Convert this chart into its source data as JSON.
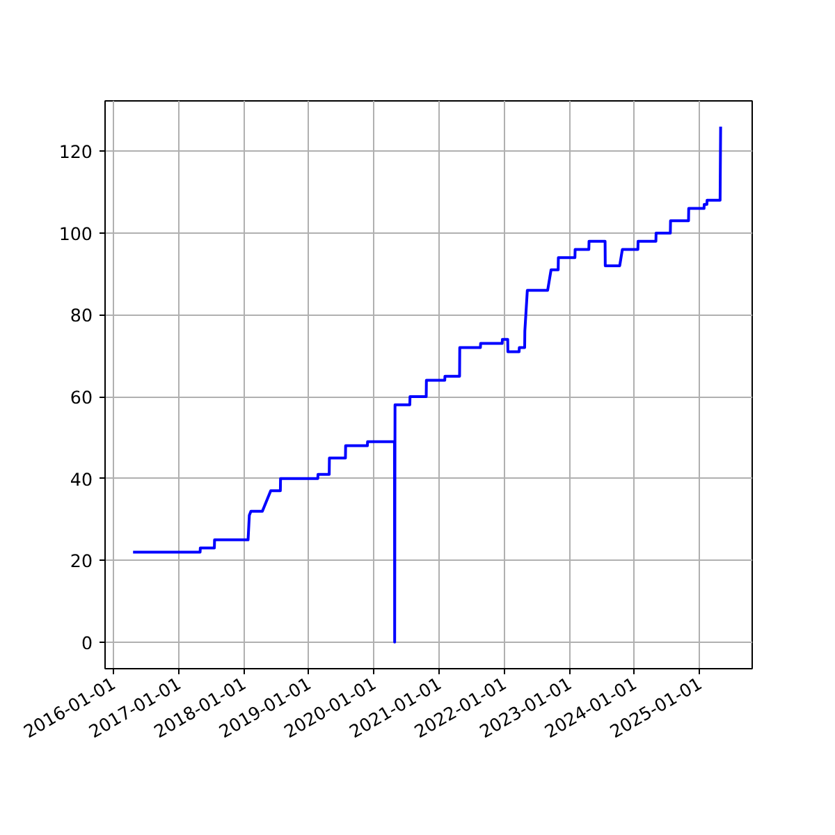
{
  "chart_data": {
    "type": "line",
    "x": [
      "2016-04-20",
      "2017-05-01",
      "2017-05-02",
      "2017-07-20",
      "2017-07-21",
      "2018-01-25",
      "2018-02-01",
      "2018-02-10",
      "2018-04-15",
      "2018-06-01",
      "2018-07-25",
      "2018-07-26",
      "2019-02-20",
      "2019-02-21",
      "2019-04-25",
      "2019-04-26",
      "2019-07-25",
      "2019-07-26",
      "2019-11-25",
      "2019-11-26",
      "2020-04-25",
      "2020-04-26",
      "2020-04-28",
      "2020-07-20",
      "2020-07-21",
      "2020-10-20",
      "2020-10-21",
      "2021-02-01",
      "2021-02-02",
      "2021-04-25",
      "2021-04-26",
      "2021-08-20",
      "2021-08-21",
      "2021-12-20",
      "2021-12-21",
      "2022-01-20",
      "2022-01-21",
      "2022-03-25",
      "2022-03-26",
      "2022-04-25",
      "2022-04-26",
      "2022-05-10",
      "2022-09-01",
      "2022-09-20",
      "2022-10-30",
      "2022-10-31",
      "2023-02-01",
      "2023-02-02",
      "2023-04-20",
      "2023-04-21",
      "2023-07-20",
      "2023-07-21",
      "2023-10-10",
      "2023-10-25",
      "2024-01-20",
      "2024-01-21",
      "2024-04-30",
      "2024-05-01",
      "2024-07-20",
      "2024-07-21",
      "2024-10-30",
      "2024-10-31",
      "2025-01-25",
      "2025-01-26",
      "2025-02-10",
      "2025-02-11",
      "2025-04-25",
      "2025-04-28"
    ],
    "series": [
      {
        "color": "#0000ff",
        "values": [
          22,
          22,
          23,
          23,
          25,
          25,
          31,
          32,
          32,
          37,
          37,
          40,
          40,
          41,
          41,
          45,
          45,
          48,
          48,
          49,
          49,
          0,
          58,
          58,
          60,
          60,
          64,
          64,
          65,
          65,
          72,
          72,
          73,
          73,
          74,
          74,
          71,
          71,
          72,
          72,
          76,
          86,
          86,
          91,
          91,
          94,
          94,
          96,
          96,
          98,
          98,
          92,
          92,
          96,
          96,
          98,
          98,
          100,
          100,
          103,
          103,
          106,
          106,
          107,
          107,
          108,
          108,
          126
        ]
      }
    ],
    "xlim": [
      "2015-11-15",
      "2025-10-22"
    ],
    "xticks": [
      "2016-01-01",
      "2017-01-01",
      "2018-01-01",
      "2019-01-01",
      "2020-01-01",
      "2021-01-01",
      "2022-01-01",
      "2023-01-01",
      "2024-01-01",
      "2025-01-01"
    ],
    "ylim": [
      -6.5,
      132.3
    ],
    "yticks": [
      0,
      20,
      40,
      60,
      80,
      100,
      120
    ],
    "grid": true,
    "marker": "none",
    "line_style": "solid"
  }
}
